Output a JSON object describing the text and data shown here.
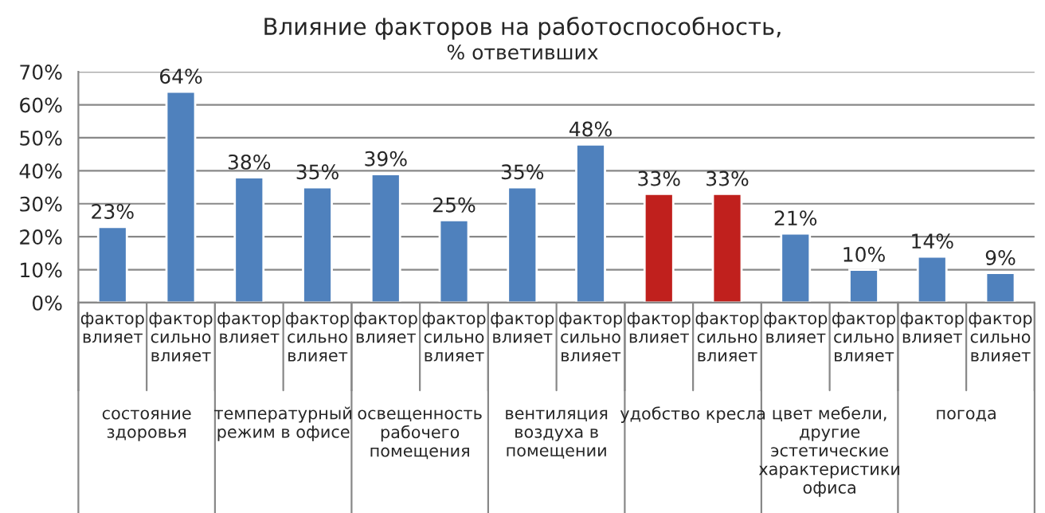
{
  "chart_data": {
    "type": "bar",
    "title": "Влияние факторов на работоспособность,",
    "subtitle": "% ответивших",
    "categories": [
      "фактор\nвлияет",
      "фактор\nсильно\nвлияет",
      "фактор\nвлияет",
      "фактор\nсильно\nвлияет",
      "фактор\nвлияет",
      "фактор\nсильно\nвлияет",
      "фактор\nвлияет",
      "фактор\nсильно\nвлияет",
      "фактор\nвлияет",
      "фактор\nсильно\nвлияет",
      "фактор\nвлияет",
      "фактор\nсильно\nвлияет",
      "фактор\nвлияет",
      "фактор\nсильно\nвлияет"
    ],
    "values": [
      23,
      64,
      38,
      35,
      39,
      25,
      35,
      48,
      33,
      33,
      21,
      10,
      14,
      9
    ],
    "value_labels": [
      "23%",
      "64%",
      "38%",
      "35%",
      "39%",
      "25%",
      "35%",
      "48%",
      "33%",
      "33%",
      "21%",
      "10%",
      "14%",
      "9%"
    ],
    "colors": [
      "#4f81bd",
      "#4f81bd",
      "#4f81bd",
      "#4f81bd",
      "#4f81bd",
      "#4f81bd",
      "#4f81bd",
      "#4f81bd",
      "#c0201d",
      "#c0201d",
      "#4f81bd",
      "#4f81bd",
      "#4f81bd",
      "#4f81bd"
    ],
    "annotations": [
      "состояние\nздоровья",
      "температурный\nрежим в офисе",
      "освещенность\nрабочего\nпомещения",
      "вентиляция\nвоздуха в\nпомещении",
      "удобство кресла",
      "цвет мебели,\nдругие\nэстетические\nхарактеристики\nофиса",
      "погода"
    ],
    "ylim": [
      0,
      70
    ],
    "yticks": [
      {
        "value": 0,
        "label": "0%"
      },
      {
        "value": 10,
        "label": "10%"
      },
      {
        "value": 20,
        "label": "20%"
      },
      {
        "value": 30,
        "label": "30%"
      },
      {
        "value": 40,
        "label": "40%"
      },
      {
        "value": 50,
        "label": "50%"
      },
      {
        "value": 60,
        "label": "60%"
      },
      {
        "value": 70,
        "label": "70%"
      }
    ],
    "grid": "y",
    "legend": false
  }
}
